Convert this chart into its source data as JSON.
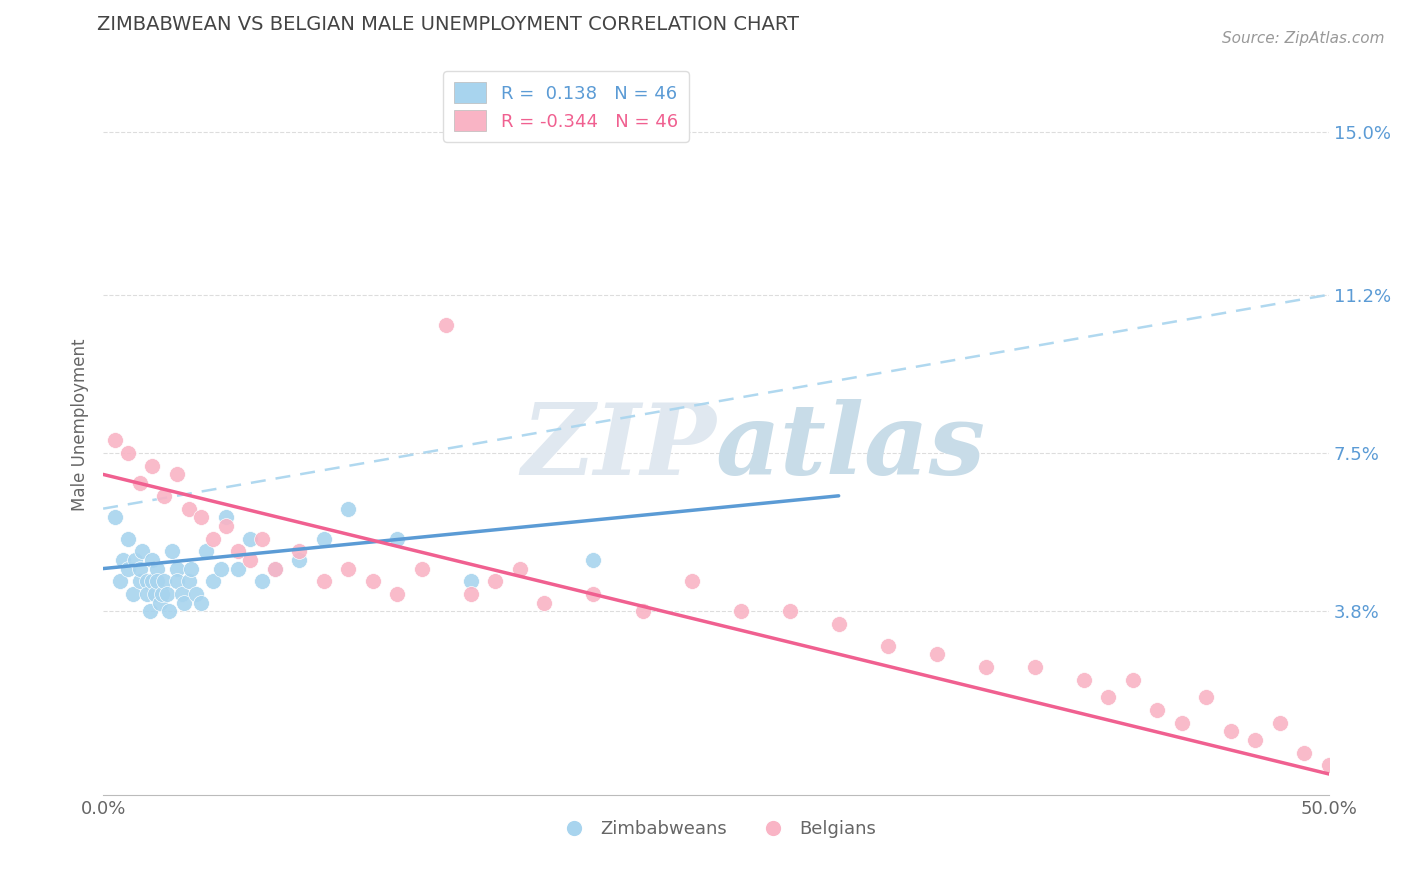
{
  "title": "ZIMBABWEAN VS BELGIAN MALE UNEMPLOYMENT CORRELATION CHART",
  "source": "Source: ZipAtlas.com",
  "ylabel": "Male Unemployment",
  "xlim": [
    0.0,
    0.5
  ],
  "ylim": [
    -0.005,
    0.168
  ],
  "yticks": [
    0.038,
    0.075,
    0.112,
    0.15
  ],
  "ytick_labels": [
    "3.8%",
    "7.5%",
    "11.2%",
    "15.0%"
  ],
  "xtick_labels": [
    "0.0%",
    "50.0%"
  ],
  "xticks": [
    0.0,
    0.5
  ],
  "r_zimbabwe": 0.138,
  "r_belgium": -0.344,
  "n": 46,
  "zimbabwe_color": "#A8D4EE",
  "belgium_color": "#F9B4C5",
  "zimbabwe_line_color": "#5B9BD5",
  "belgium_line_color": "#F06090",
  "dashed_line_color": "#A8D4EE",
  "background_color": "#FFFFFF",
  "watermark_color": "#E0E8F0",
  "zimbabwe_x": [
    0.005,
    0.007,
    0.008,
    0.01,
    0.01,
    0.012,
    0.013,
    0.015,
    0.015,
    0.016,
    0.018,
    0.018,
    0.019,
    0.02,
    0.02,
    0.021,
    0.022,
    0.022,
    0.023,
    0.024,
    0.025,
    0.026,
    0.027,
    0.028,
    0.03,
    0.03,
    0.032,
    0.033,
    0.035,
    0.036,
    0.038,
    0.04,
    0.042,
    0.045,
    0.048,
    0.05,
    0.055,
    0.06,
    0.065,
    0.07,
    0.08,
    0.09,
    0.1,
    0.12,
    0.15,
    0.2
  ],
  "zimbabwe_y": [
    0.06,
    0.045,
    0.05,
    0.055,
    0.048,
    0.042,
    0.05,
    0.045,
    0.048,
    0.052,
    0.045,
    0.042,
    0.038,
    0.05,
    0.045,
    0.042,
    0.048,
    0.045,
    0.04,
    0.042,
    0.045,
    0.042,
    0.038,
    0.052,
    0.048,
    0.045,
    0.042,
    0.04,
    0.045,
    0.048,
    0.042,
    0.04,
    0.052,
    0.045,
    0.048,
    0.06,
    0.048,
    0.055,
    0.045,
    0.048,
    0.05,
    0.055,
    0.062,
    0.055,
    0.045,
    0.05
  ],
  "belgium_x": [
    0.005,
    0.01,
    0.015,
    0.02,
    0.025,
    0.03,
    0.035,
    0.04,
    0.045,
    0.05,
    0.055,
    0.06,
    0.065,
    0.07,
    0.08,
    0.09,
    0.1,
    0.11,
    0.12,
    0.13,
    0.14,
    0.15,
    0.16,
    0.17,
    0.18,
    0.2,
    0.22,
    0.24,
    0.26,
    0.28,
    0.3,
    0.32,
    0.34,
    0.36,
    0.38,
    0.4,
    0.41,
    0.42,
    0.43,
    0.44,
    0.45,
    0.46,
    0.47,
    0.48,
    0.49,
    0.5
  ],
  "belgium_y": [
    0.078,
    0.075,
    0.068,
    0.072,
    0.065,
    0.07,
    0.062,
    0.06,
    0.055,
    0.058,
    0.052,
    0.05,
    0.055,
    0.048,
    0.052,
    0.045,
    0.048,
    0.045,
    0.042,
    0.048,
    0.105,
    0.042,
    0.045,
    0.048,
    0.04,
    0.042,
    0.038,
    0.045,
    0.038,
    0.038,
    0.035,
    0.03,
    0.028,
    0.025,
    0.025,
    0.022,
    0.018,
    0.022,
    0.015,
    0.012,
    0.018,
    0.01,
    0.008,
    0.012,
    0.005,
    0.002
  ],
  "zim_line_x0": 0.0,
  "zim_line_x1": 0.3,
  "zim_line_y0": 0.048,
  "zim_line_y1": 0.065,
  "bel_line_x0": 0.0,
  "bel_line_x1": 0.5,
  "bel_line_y0": 0.07,
  "bel_line_y1": 0.0,
  "dash_line_x0": 0.0,
  "dash_line_x1": 0.5,
  "dash_line_y0": 0.062,
  "dash_line_y1": 0.112
}
